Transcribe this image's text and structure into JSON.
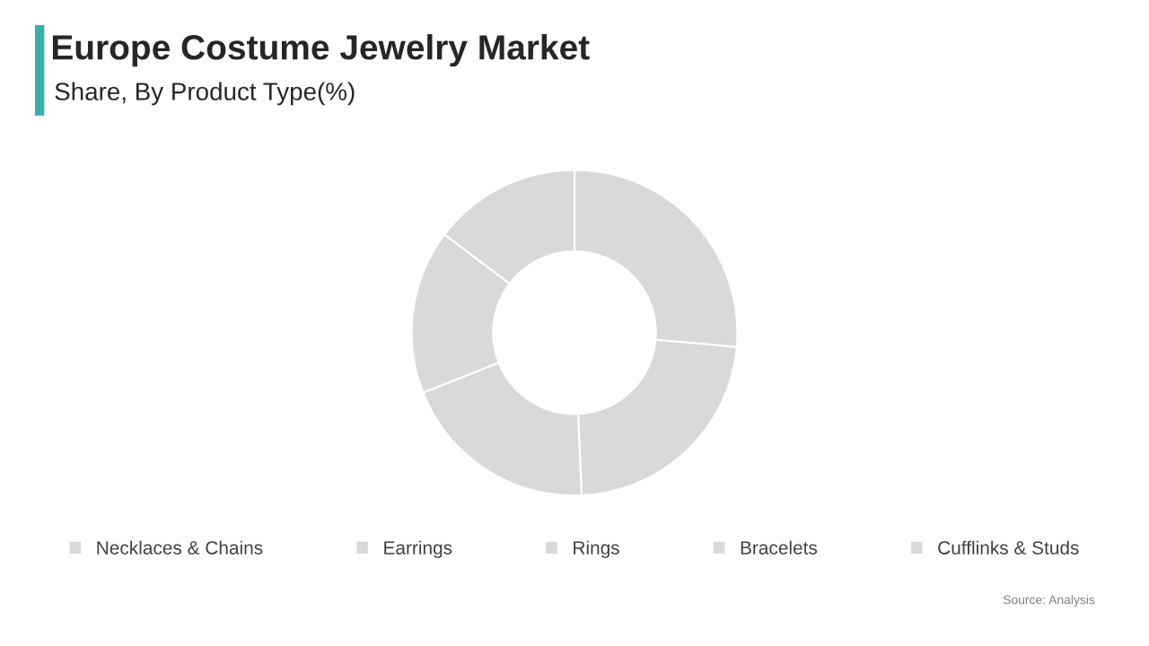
{
  "chart_data": {
    "type": "donut",
    "title": "Europe Costume Jewelry Market",
    "subtitle": "Share, By Product Type(%)",
    "categories": [
      "Necklaces & Chains",
      "Earrings",
      "Rings",
      "Bracelets",
      "Cufflinks & Studs"
    ],
    "values": [
      26.4,
      22.9,
      19.7,
      16.3,
      14.7
    ],
    "colors": [
      "#d9d9d9",
      "#d9d9d9",
      "#d9d9d9",
      "#d9d9d9",
      "#d9d9d9"
    ],
    "legend": "bottom",
    "annotations": [
      "Source: Analysis"
    ]
  }
}
